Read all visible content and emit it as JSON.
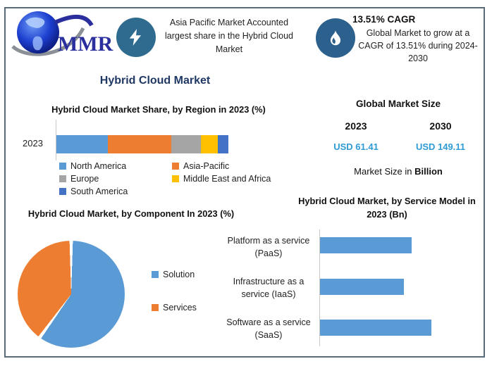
{
  "brand": {
    "logo_text": "MMR"
  },
  "colors": {
    "accent_navy": "#1F3864",
    "bolt_circle": "#2F6B8F",
    "flame_circle": "#2C618E",
    "value_blue": "#2E9BD5",
    "bar_blue": "#5B9BD5",
    "orange": "#ED7D31",
    "gray": "#A5A5A5",
    "yellow": "#FFC000",
    "dark_blue": "#4472C4"
  },
  "header": {
    "highlight_text": "Asia Pacific Market Accounted largest share in the Hybrid Cloud Market",
    "cagr_title": "13.51% CAGR",
    "cagr_text": "Global Market to grow at a CAGR of 13.51% during 2024-2030"
  },
  "main_title": "Hybrid Cloud Market",
  "market_size": {
    "title": "Global Market Size",
    "year_left": "2023",
    "year_right": "2030",
    "value_left": "USD 61.41",
    "value_right": "USD 149.11",
    "note_prefix": "Market Size in ",
    "note_bold": "Billion"
  },
  "chart_data": [
    {
      "type": "bar",
      "subtype": "stacked-horizontal",
      "title": "Hybrid Cloud Market Share, by Region in 2023 (%)",
      "categories": [
        "2023"
      ],
      "series": [
        {
          "name": "North America",
          "values": [
            30
          ],
          "color": "#5B9BD5"
        },
        {
          "name": "Asia-Pacific",
          "values": [
            37
          ],
          "color": "#ED7D31"
        },
        {
          "name": "Europe",
          "values": [
            17
          ],
          "color": "#A5A5A5"
        },
        {
          "name": "Middle East and Africa",
          "values": [
            10
          ],
          "color": "#FFC000"
        },
        {
          "name": "South America",
          "values": [
            6
          ],
          "color": "#4472C4"
        }
      ],
      "xlim": [
        0,
        100
      ],
      "grid": false,
      "legend_position": "bottom"
    },
    {
      "type": "pie",
      "title": "Hybrid Cloud Market, by Component In 2023 (%)",
      "labels": [
        "Solution",
        "Services"
      ],
      "values": [
        60,
        40
      ],
      "colors": [
        "#5B9BD5",
        "#ED7D31"
      ],
      "start_angle_deg": 0,
      "direction": "clockwise",
      "legend_position": "right"
    },
    {
      "type": "bar",
      "subtype": "horizontal",
      "title": "Hybrid Cloud Market, by Service Model in 2023 (Bn)",
      "categories": [
        "Platform as a service (PaaS)",
        "Infrastructure as a service (IaaS)",
        "Software as a service (SaaS)"
      ],
      "values_relative_pct_of_max": [
        82,
        75,
        100
      ],
      "note": "Axis has no tick labels; values are bar lengths relative to the longest bar (SaaS).",
      "bar_color": "#5B9BD5",
      "grid": false
    }
  ]
}
